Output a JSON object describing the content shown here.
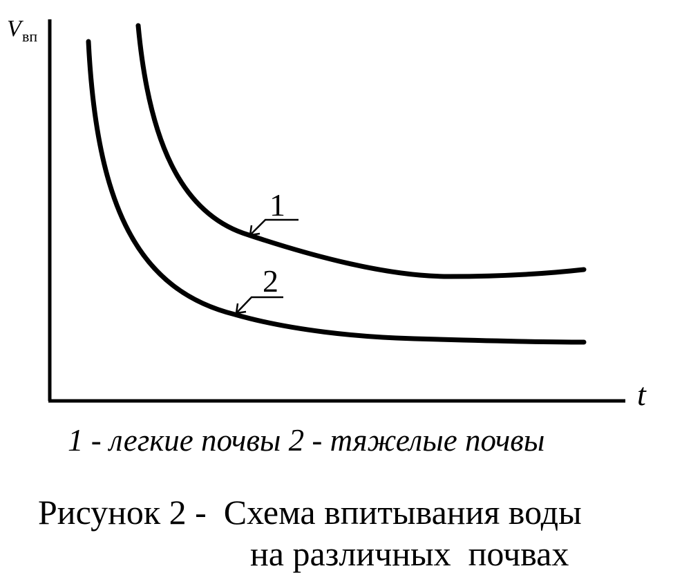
{
  "axes": {
    "y_label": "V",
    "y_label_sub": "вп",
    "x_label": "t"
  },
  "curves": [
    {
      "label": "1"
    },
    {
      "label": "2"
    }
  ],
  "legend": "1 - легкие почвы 2 - тяжелые почвы",
  "caption": {
    "line1": "Рисунок 2 -  Схема впитывания воды",
    "line2": "на различных  почвах"
  }
}
